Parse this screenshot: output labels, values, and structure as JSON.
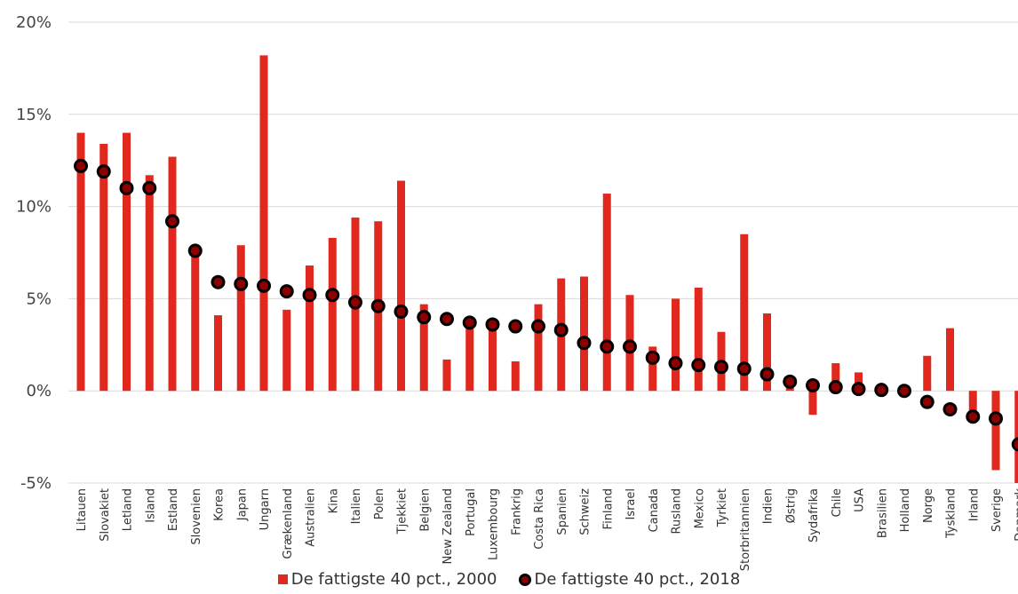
{
  "colors": {
    "bar": "#E0281E",
    "dot_fill": "#8B0000",
    "dot_stroke": "#000000",
    "grid": "#d9d9d9"
  },
  "chart_data": {
    "type": "bar",
    "title": "",
    "xlabel": "",
    "ylabel": "",
    "ylim": [
      -5,
      20
    ],
    "ytick_labels": [
      "-5%",
      "0%",
      "5%",
      "10%",
      "15%",
      "20%"
    ],
    "ytick_values": [
      -5,
      0,
      5,
      10,
      15,
      20
    ],
    "grid": true,
    "legend_position": "bottom",
    "categories": [
      "Litauen",
      "Slovakiet",
      "Letland",
      "Island",
      "Estland",
      "Slovenien",
      "Korea",
      "Japan",
      "Ungarn",
      "Grækenland",
      "Australien",
      "Kina",
      "Italien",
      "Polen",
      "Tjekkiet",
      "Belgien",
      "New Zealand",
      "Portugal",
      "Luxembourg",
      "Frankrig",
      "Costa Rica",
      "Spanien",
      "Schweiz",
      "Finland",
      "Israel",
      "Canada",
      "Rusland",
      "Mexico",
      "Tyrkiet",
      "Storbritannien",
      "Indien",
      "Østrig",
      "Sydafrika",
      "Chile",
      "USA",
      "Brasilien",
      "Holland",
      "Norge",
      "Tyskland",
      "Irland",
      "Sverige",
      "Danmark"
    ],
    "series": [
      {
        "name": "De fattigste 40 pct., 2000",
        "kind": "bar",
        "values": [
          14.0,
          13.4,
          14.0,
          11.7,
          12.7,
          7.6,
          4.1,
          7.9,
          18.2,
          4.4,
          6.8,
          8.3,
          9.4,
          9.2,
          11.4,
          4.7,
          1.7,
          3.6,
          3.5,
          1.6,
          4.7,
          6.1,
          6.2,
          10.7,
          5.2,
          2.4,
          5.0,
          5.6,
          3.2,
          8.5,
          4.2,
          0.4,
          -1.3,
          1.5,
          1.0,
          0.1,
          0.0,
          1.9,
          3.4,
          -1.2,
          -4.3,
          -5.0
        ]
      },
      {
        "name": "De fattigste 40 pct., 2018",
        "kind": "dot",
        "values": [
          12.2,
          11.9,
          11.0,
          11.0,
          9.2,
          7.6,
          5.9,
          5.8,
          5.7,
          5.4,
          5.2,
          5.2,
          4.8,
          4.6,
          4.3,
          4.0,
          3.9,
          3.7,
          3.6,
          3.5,
          3.5,
          3.3,
          2.6,
          2.4,
          2.4,
          1.8,
          1.5,
          1.4,
          1.3,
          1.2,
          0.9,
          0.5,
          0.3,
          0.2,
          0.1,
          0.05,
          0.0,
          -0.6,
          -1.0,
          -1.4,
          -1.5,
          -2.9
        ]
      }
    ]
  }
}
